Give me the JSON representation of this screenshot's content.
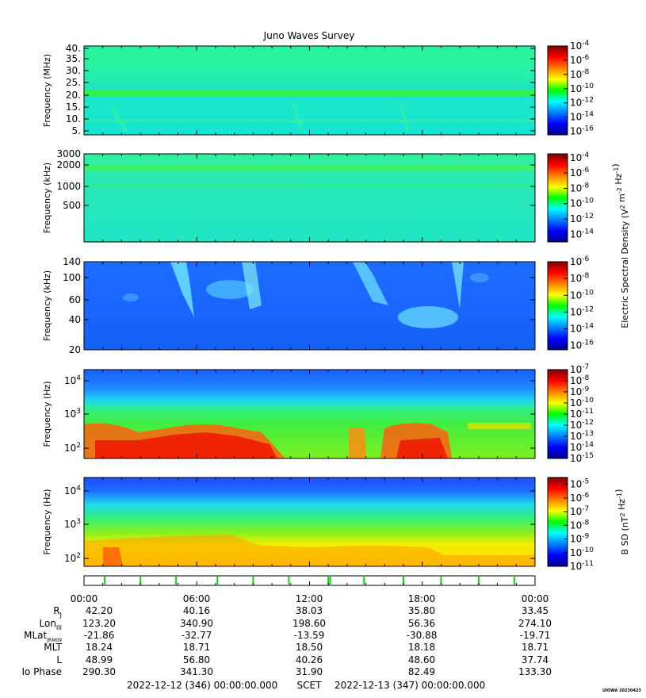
{
  "title": "Juno Waves Survey",
  "panels": [
    {
      "ylabel": "Frequency (MHz)",
      "ticks": [
        "40.",
        "35.",
        "30.",
        "25.",
        "20.",
        "15.",
        "10.",
        "5."
      ],
      "cb_ticks": [
        "10^-4",
        "10^-6",
        "10^-8",
        "10^-10",
        "10^-12",
        "10^-14",
        "10^-16"
      ],
      "cb_range": [
        -16.5,
        -4
      ]
    },
    {
      "ylabel": "Frequency (kHz)",
      "ticks": [
        "3000",
        "2000",
        "1000",
        "500"
      ],
      "cb_ticks": [
        "10^-4",
        "10^-6",
        "10^-8",
        "10^-10",
        "10^-12",
        "10^-14"
      ],
      "cb_range": [
        -15,
        -3.5
      ]
    },
    {
      "ylabel": "Frequency (kHz)",
      "ticks": [
        "140",
        "100",
        "60",
        "40",
        "20"
      ],
      "cb_ticks": [
        "10^-6",
        "10^-8",
        "10^-10",
        "10^-12",
        "10^-14",
        "10^-16"
      ],
      "cb_range": [
        -16.5,
        -6
      ]
    },
    {
      "ylabel": "Frequency (Hz)",
      "ticks": [
        "10^4",
        "10^3",
        "10^2"
      ],
      "cb_ticks": [
        "10^-7",
        "10^-8",
        "10^-9",
        "10^-10",
        "10^-11",
        "10^-12",
        "10^-13",
        "10^-14",
        "10^-15"
      ],
      "cb_range": [
        -15,
        -7
      ]
    },
    {
      "ylabel": "Frequency (Hz)",
      "ticks": [
        "10^4",
        "10^3",
        "10^2"
      ],
      "cb_ticks": [
        "10^-5",
        "10^-6",
        "10^-7",
        "10^-8",
        "10^-9",
        "10^-10",
        "10^-11"
      ],
      "cb_range": [
        -11,
        -4.5
      ]
    }
  ],
  "colorbar_labels": {
    "electric": "Electric Spectral Density (V^2 m^-2 Hz^-1)",
    "magnetic": "B SD (nT^2 Hz^-1)"
  },
  "chart_data": {
    "type": "heatmap",
    "x_ticks": [
      "00:00",
      "06:00",
      "12:00",
      "18:00",
      "00:00"
    ],
    "rows": [
      {
        "label": "R_J",
        "values": [
          "42.20",
          "40.16",
          "38.03",
          "35.80",
          "33.45"
        ]
      },
      {
        "label": "Lon_III",
        "values": [
          "123.20",
          "340.90",
          "198.60",
          "56.36",
          "274.10"
        ]
      },
      {
        "label": "MLat_JRM09",
        "values": [
          "-21.86",
          "-32.77",
          "-13.59",
          "-30.88",
          "-19.71"
        ]
      },
      {
        "label": "MLT",
        "values": [
          "18.24",
          "18.71",
          "18.50",
          "18.18",
          "18.71"
        ]
      },
      {
        "label": "L",
        "values": [
          "48.99",
          "56.80",
          "40.26",
          "48.60",
          "37.74"
        ]
      },
      {
        "label": "Io Phase",
        "values": [
          "290.30",
          "341.30",
          "31.90",
          "82.49",
          "133.30"
        ]
      }
    ],
    "event_markers_hours": [
      1.1,
      3.0,
      4.9,
      7.1,
      9.0,
      10.9,
      13.0,
      13.1,
      14.9,
      17.0,
      19.0,
      21.0,
      22.9
    ]
  },
  "footer": {
    "start": "2022-12-12 (346) 00:00:00.000",
    "mid": "SCET",
    "end": "2022-12-13 (347) 00:00:00.000"
  },
  "credit": "UIOWA 20230423"
}
